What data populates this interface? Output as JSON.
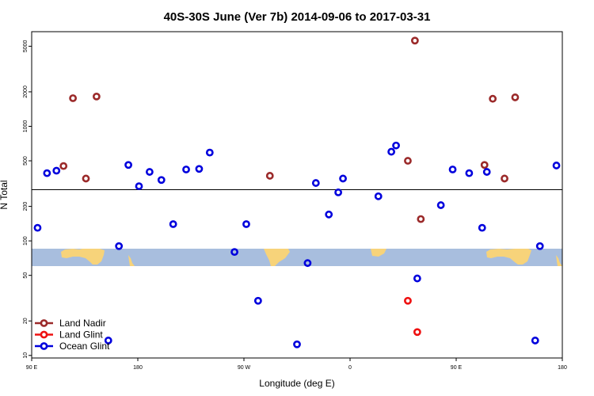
{
  "chart_data": {
    "type": "scatter",
    "title": "40S-30S June (Ver 7b)   2014-09-06 to 2017-03-31",
    "xlabel": "Longitude (deg E)",
    "ylabel": "N Total",
    "xlim": [
      90,
      540
    ],
    "ylim": [
      9.5,
      6700
    ],
    "yscale": "log",
    "x_ticks": [
      {
        "value": 90,
        "label": "90 E"
      },
      {
        "value": 180,
        "label": "180"
      },
      {
        "value": 270,
        "label": "90 W"
      },
      {
        "value": 360,
        "label": "0"
      },
      {
        "value": 450,
        "label": "90 E"
      },
      {
        "value": 540,
        "label": "180"
      }
    ],
    "y_ticks": [
      {
        "value": 10,
        "label": "10"
      },
      {
        "value": 20,
        "label": "20"
      },
      {
        "value": 50,
        "label": "50"
      },
      {
        "value": 100,
        "label": "100"
      },
      {
        "value": 200,
        "label": "200"
      },
      {
        "value": 500,
        "label": "500"
      },
      {
        "value": 1000,
        "label": "1000"
      },
      {
        "value": 2000,
        "label": "2000"
      },
      {
        "value": 5000,
        "label": "5000"
      }
    ],
    "reference_line": 280,
    "series": [
      {
        "name": "Land Nadir",
        "color": "#9b2a2a",
        "x": [
          117,
          125,
          136,
          145,
          292,
          409,
          415,
          420,
          474,
          481,
          491,
          500
        ],
        "y": [
          450,
          1760,
          350,
          1820,
          370,
          500,
          5600,
          155,
          460,
          1740,
          350,
          1790
        ]
      },
      {
        "name": "Land Glint",
        "color": "#ee1111",
        "x": [
          409,
          417
        ],
        "y": [
          30,
          16
        ]
      },
      {
        "name": "Ocean Glint",
        "color": "#0000dd",
        "x": [
          95,
          103,
          111,
          155,
          164,
          172,
          181,
          190,
          200,
          210,
          221,
          232,
          241,
          262,
          272,
          282,
          315,
          324,
          331,
          342,
          350,
          354,
          384,
          395,
          399,
          417,
          437,
          447,
          461,
          472,
          476,
          517,
          521,
          535
        ],
        "y": [
          130,
          390,
          410,
          13.5,
          90,
          460,
          300,
          400,
          340,
          140,
          420,
          425,
          590,
          80,
          140,
          30,
          12.5,
          64,
          320,
          170,
          265,
          350,
          245,
          600,
          680,
          47,
          205,
          420,
          390,
          130,
          400,
          13.5,
          90,
          455
        ]
      }
    ],
    "legend": {
      "position": "bottom-left",
      "entries": [
        "Land Nadir",
        "Land Glint",
        "Ocean Glint"
      ]
    },
    "map_inset": {
      "ocean_color": "#a8bede",
      "land_color": "#f7d37a"
    }
  }
}
